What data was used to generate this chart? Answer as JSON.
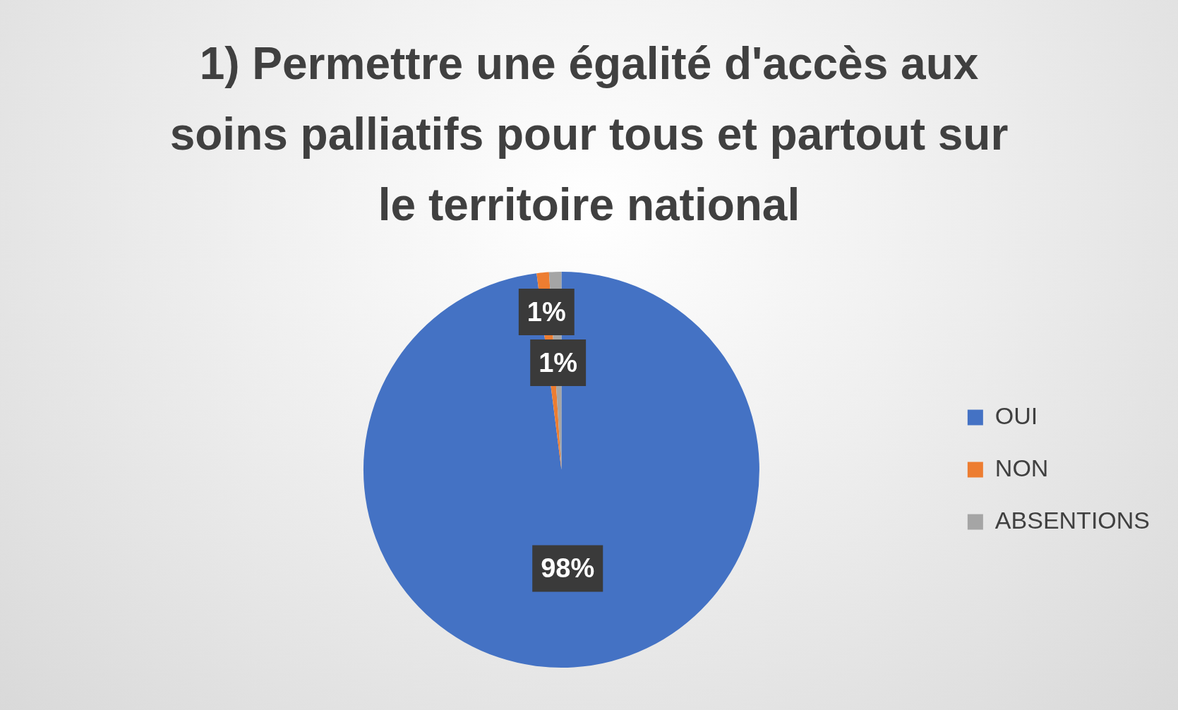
{
  "chart_data": {
    "type": "pie",
    "title": "1) Permettre une égalité d'accès aux soins palliatifs pour tous et partout sur le territoire national",
    "categories": [
      "OUI",
      "NON",
      "ABSENTIONS"
    ],
    "values": [
      98,
      1,
      1
    ],
    "colors": [
      "#4472c4",
      "#ed7d31",
      "#a5a5a5"
    ],
    "value_labels": [
      "98%",
      "1%",
      "1%"
    ],
    "legend": "right"
  }
}
